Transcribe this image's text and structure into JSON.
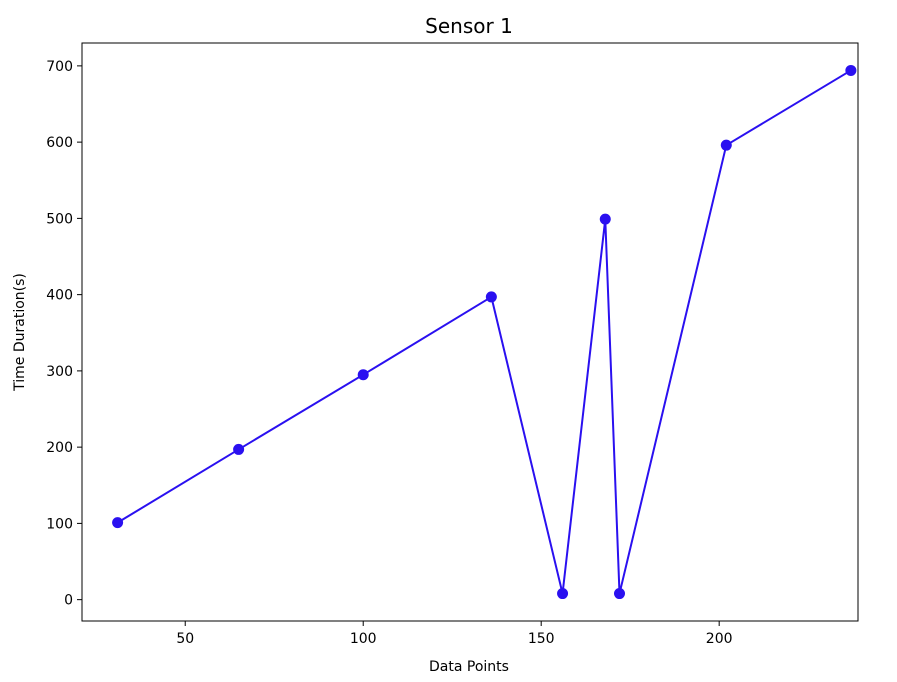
{
  "chart_data": {
    "type": "line",
    "title": "Sensor 1",
    "xlabel": "Data Points",
    "ylabel": "Time Duration(s)",
    "xlim": [
      21,
      239
    ],
    "ylim": [
      -28,
      730
    ],
    "xticks": [
      50,
      100,
      150,
      200
    ],
    "yticks": [
      0,
      100,
      200,
      300,
      400,
      500,
      600,
      700
    ],
    "grid": false,
    "series": [
      {
        "color": "#2a10f0",
        "marker": "circle",
        "x": [
          31,
          65,
          100,
          136,
          156,
          168,
          172,
          202,
          237
        ],
        "values": [
          101,
          197,
          295,
          397,
          8,
          499,
          8,
          596,
          694
        ]
      }
    ]
  }
}
